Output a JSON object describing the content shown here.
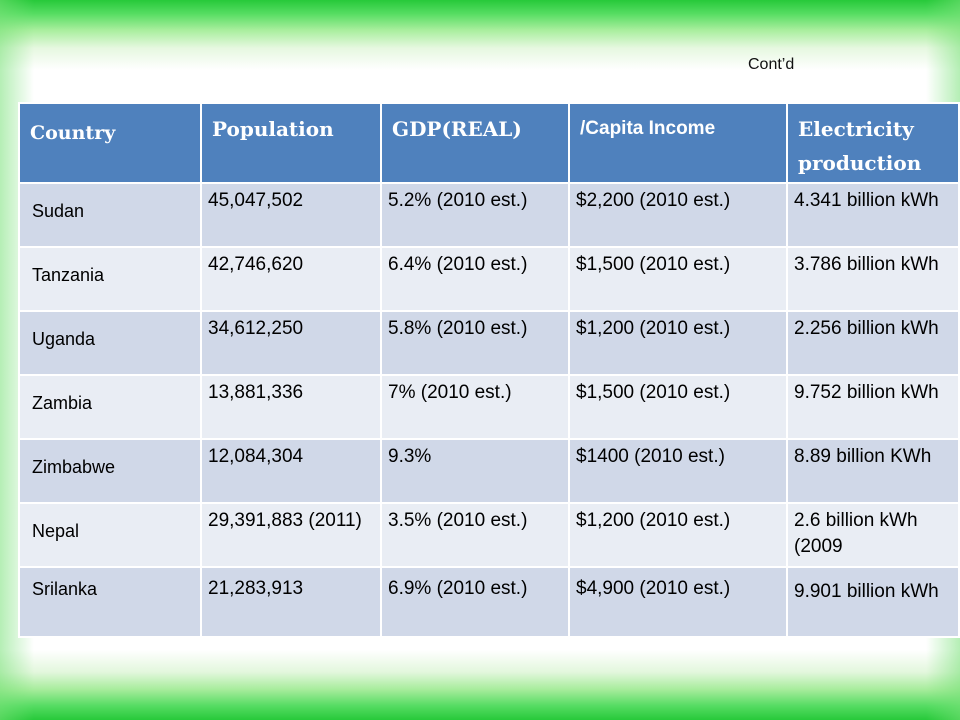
{
  "contd": "Cont’d",
  "table": {
    "headers": [
      "Country",
      "Population",
      "GDP(REAL)",
      "/Capita Income",
      "Electricity production"
    ],
    "rows": [
      [
        "Sudan",
        "45,047,502",
        "5.2% (2010 est.)",
        "$2,200 (2010 est.)",
        "4.341 billion kWh"
      ],
      [
        "Tanzania",
        "42,746,620",
        "6.4% (2010 est.)",
        "$1,500 (2010 est.)",
        "3.786 billion kWh"
      ],
      [
        "Uganda",
        "34,612,250",
        "5.8% (2010 est.)",
        "$1,200 (2010 est.)",
        "2.256 billion kWh"
      ],
      [
        "Zambia",
        "13,881,336",
        "7% (2010 est.)",
        "$1,500 (2010 est.)",
        "9.752 billion kWh"
      ],
      [
        "Zimbabwe",
        "12,084,304",
        "9.3%",
        "$1400 (2010 est.)",
        "8.89 billion KWh"
      ],
      [
        "Nepal",
        "29,391,883 (2011)",
        "3.5% (2010 est.)",
        " $1,200 (2010 est.)",
        "2.6 billion kWh (2009"
      ],
      [
        "Srilanka",
        "21,283,913",
        "6.9% (2010 est.)",
        "$4,900 (2010 est.)",
        "9.901 billion kWh"
      ]
    ]
  }
}
